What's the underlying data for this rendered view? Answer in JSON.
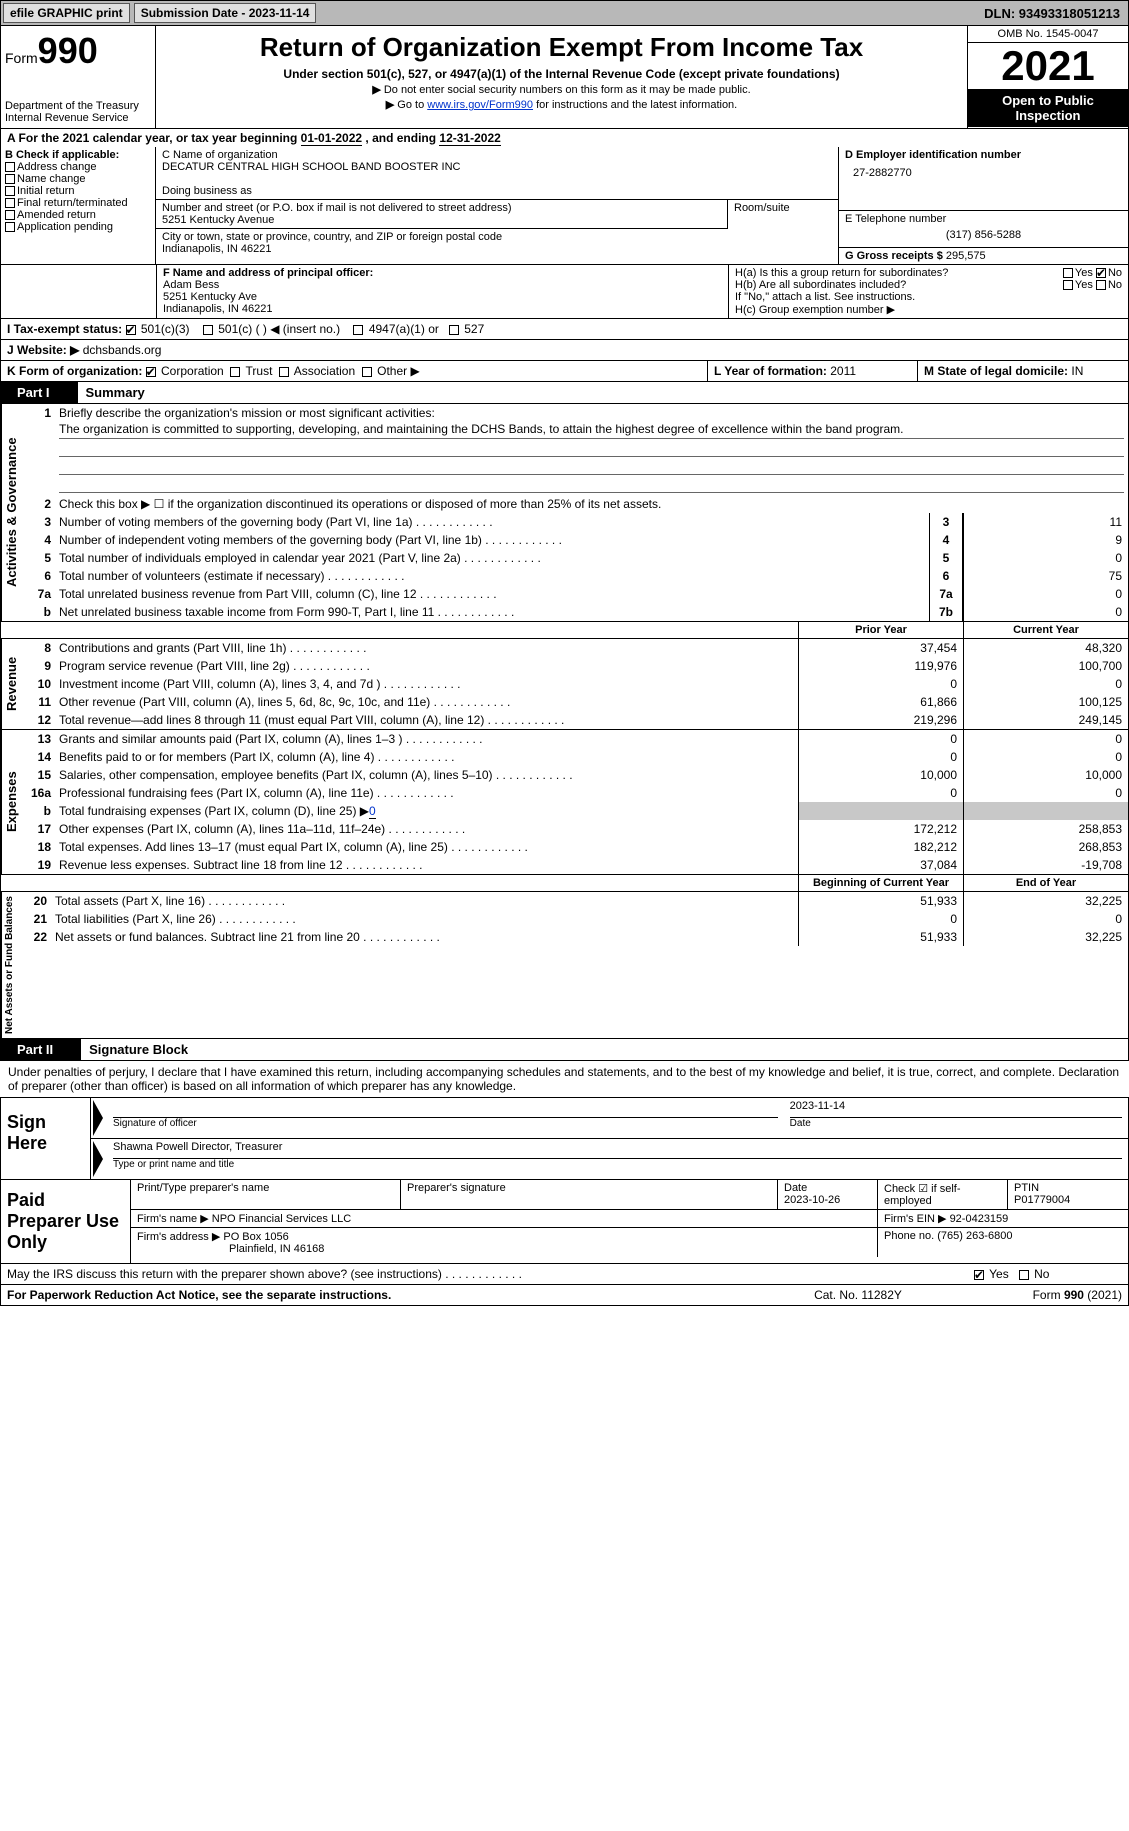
{
  "topbar": {
    "efile": "efile GRAPHIC print",
    "submission_label": "Submission Date - 2023-11-14",
    "dln_label": "DLN: 93493318051213"
  },
  "header": {
    "form_word": "Form",
    "form_number": "990",
    "title": "Return of Organization Exempt From Income Tax",
    "subtitle": "Under section 501(c), 527, or 4947(a)(1) of the Internal Revenue Code (except private foundations)",
    "note1": "Do not enter social security numbers on this form as it may be made public.",
    "note2_pre": "Go to ",
    "note2_link": "www.irs.gov/Form990",
    "note2_post": " for instructions and the latest information.",
    "dept1": "Department of the Treasury",
    "dept2": "Internal Revenue Service",
    "omb": "OMB No. 1545-0047",
    "year": "2021",
    "open": "Open to Public Inspection"
  },
  "period": {
    "label_a": "A For the 2021 calendar year, or tax year beginning ",
    "begin": "01-01-2022",
    "mid": "   , and ending ",
    "end": "12-31-2022"
  },
  "boxB": {
    "title": "B Check if applicable:",
    "items": [
      "Address change",
      "Name change",
      "Initial return",
      "Final return/terminated",
      "Amended return",
      "Application pending"
    ]
  },
  "boxC": {
    "name_label": "C Name of organization",
    "name": "DECATUR CENTRAL HIGH SCHOOL BAND BOOSTER INC",
    "dba_label": "Doing business as",
    "dba": "",
    "street_label": "Number and street (or P.O. box if mail is not delivered to street address)",
    "street": "5251 Kentucky Avenue",
    "room_label": "Room/suite",
    "room": "",
    "city_label": "City or town, state or province, country, and ZIP or foreign postal code",
    "city": "Indianapolis, IN  46221"
  },
  "boxD": {
    "ein_label": "D Employer identification number",
    "ein": "27-2882770",
    "phone_label": "E Telephone number",
    "phone": "(317) 856-5288",
    "gross_label": "G Gross receipts $ ",
    "gross": "295,575"
  },
  "boxF": {
    "label": "F Name and address of principal officer:",
    "name": "Adam Bess",
    "addr1": "5251 Kentucky Ave",
    "addr2": "Indianapolis, IN  46221"
  },
  "boxH": {
    "ha_label": "H(a)  Is this a group return for subordinates?",
    "hb_label": "H(b)  Are all subordinates included?",
    "hb_note": "If \"No,\" attach a list. See instructions.",
    "hc_label": "H(c)  Group exemption number ▶",
    "yes": "Yes",
    "no": "No"
  },
  "boxI": {
    "label": "I  Tax-exempt status:",
    "opt1": "501(c)(3)",
    "opt2": "501(c) (  ) ◀ (insert no.)",
    "opt3": "4947(a)(1) or",
    "opt4": "527"
  },
  "boxJ": {
    "label": "J  Website: ▶",
    "value": "dchsbands.org"
  },
  "boxK": {
    "label": "K Form of organization:",
    "opts": [
      "Corporation",
      "Trust",
      "Association",
      "Other ▶"
    ]
  },
  "boxL": {
    "label": "L Year of formation: ",
    "value": "2011"
  },
  "boxM": {
    "label": "M State of legal domicile: ",
    "value": "IN"
  },
  "part1": {
    "label": "Part I",
    "title": "Summary",
    "q1_label": "Briefly describe the organization's mission or most significant activities:",
    "q1_text": "The organization is committed to supporting, developing, and maintaining the DCHS Bands, to attain the highest degree of excellence within the band program.",
    "q2": "Check this box ▶ ☐ if the organization discontinued its operations or disposed of more than 25% of its net assets.",
    "rows_gov": [
      {
        "n": "3",
        "t": "Number of voting members of the governing body (Part VI, line 1a)",
        "box": "3",
        "v": "11"
      },
      {
        "n": "4",
        "t": "Number of independent voting members of the governing body (Part VI, line 1b)",
        "box": "4",
        "v": "9"
      },
      {
        "n": "5",
        "t": "Total number of individuals employed in calendar year 2021 (Part V, line 2a)",
        "box": "5",
        "v": "0"
      },
      {
        "n": "6",
        "t": "Total number of volunteers (estimate if necessary)",
        "box": "6",
        "v": "75"
      },
      {
        "n": "7a",
        "t": "Total unrelated business revenue from Part VIII, column (C), line 12",
        "box": "7a",
        "v": "0"
      },
      {
        "n": "b",
        "t": "Net unrelated business taxable income from Form 990-T, Part I, line 11",
        "box": "7b",
        "v": "0"
      }
    ],
    "col_headers": {
      "prior": "Prior Year",
      "current": "Current Year",
      "begin": "Beginning of Current Year",
      "end": "End of Year"
    },
    "rev": [
      {
        "n": "8",
        "t": "Contributions and grants (Part VIII, line 1h)",
        "p": "37,454",
        "c": "48,320"
      },
      {
        "n": "9",
        "t": "Program service revenue (Part VIII, line 2g)",
        "p": "119,976",
        "c": "100,700"
      },
      {
        "n": "10",
        "t": "Investment income (Part VIII, column (A), lines 3, 4, and 7d )",
        "p": "0",
        "c": "0"
      },
      {
        "n": "11",
        "t": "Other revenue (Part VIII, column (A), lines 5, 6d, 8c, 9c, 10c, and 11e)",
        "p": "61,866",
        "c": "100,125"
      },
      {
        "n": "12",
        "t": "Total revenue—add lines 8 through 11 (must equal Part VIII, column (A), line 12)",
        "p": "219,296",
        "c": "249,145"
      }
    ],
    "exp": [
      {
        "n": "13",
        "t": "Grants and similar amounts paid (Part IX, column (A), lines 1–3 )",
        "p": "0",
        "c": "0"
      },
      {
        "n": "14",
        "t": "Benefits paid to or for members (Part IX, column (A), line 4)",
        "p": "0",
        "c": "0"
      },
      {
        "n": "15",
        "t": "Salaries, other compensation, employee benefits (Part IX, column (A), lines 5–10)",
        "p": "10,000",
        "c": "10,000"
      },
      {
        "n": "16a",
        "t": "Professional fundraising fees (Part IX, column (A), line 11e)",
        "p": "0",
        "c": "0"
      },
      {
        "n": "b",
        "t": "Total fundraising expenses (Part IX, column (D), line 25) ▶",
        "inline": "0",
        "shaded": true
      },
      {
        "n": "17",
        "t": "Other expenses (Part IX, column (A), lines 11a–11d, 11f–24e)",
        "p": "172,212",
        "c": "258,853"
      },
      {
        "n": "18",
        "t": "Total expenses. Add lines 13–17 (must equal Part IX, column (A), line 25)",
        "p": "182,212",
        "c": "268,853"
      },
      {
        "n": "19",
        "t": "Revenue less expenses. Subtract line 18 from line 12",
        "p": "37,084",
        "c": "-19,708"
      }
    ],
    "net": [
      {
        "n": "20",
        "t": "Total assets (Part X, line 16)",
        "p": "51,933",
        "c": "32,225"
      },
      {
        "n": "21",
        "t": "Total liabilities (Part X, line 26)",
        "p": "0",
        "c": "0"
      },
      {
        "n": "22",
        "t": "Net assets or fund balances. Subtract line 21 from line 20",
        "p": "51,933",
        "c": "32,225"
      }
    ],
    "vlabels": {
      "gov": "Activities & Governance",
      "rev": "Revenue",
      "exp": "Expenses",
      "net": "Net Assets or Fund Balances"
    }
  },
  "part2": {
    "label": "Part II",
    "title": "Signature Block",
    "penalty": "Under penalties of perjury, I declare that I have examined this return, including accompanying schedules and statements, and to the best of my knowledge and belief, it is true, correct, and complete. Declaration of preparer (other than officer) is based on all information of which preparer has any knowledge.",
    "sign_here": "Sign Here",
    "sig_officer": "Signature of officer",
    "sig_date": "2023-11-14",
    "date_label": "Date",
    "officer_name": "Shawna Powell  Director, Treasurer",
    "type_name": "Type or print name and title",
    "paid_label": "Paid Preparer Use Only",
    "prep_name_label": "Print/Type preparer's name",
    "prep_sig_label": "Preparer's signature",
    "prep_date_label": "Date",
    "prep_date": "2023-10-26",
    "self_emp": "Check ☑ if self-employed",
    "ptin_label": "PTIN",
    "ptin": "P01779004",
    "firm_name_label": "Firm's name    ▶",
    "firm_name": "NPO Financial Services LLC",
    "firm_ein_label": "Firm's EIN ▶",
    "firm_ein": "92-0423159",
    "firm_addr_label": "Firm's address ▶",
    "firm_addr1": "PO Box 1056",
    "firm_addr2": "Plainfield, IN  46168",
    "firm_phone_label": "Phone no. ",
    "firm_phone": "(765) 263-6800",
    "discuss": "May the IRS discuss this return with the preparer shown above? (see instructions)",
    "yes": "Yes",
    "no": "No"
  },
  "footer": {
    "pra": "For Paperwork Reduction Act Notice, see the separate instructions.",
    "cat": "Cat. No. 11282Y",
    "form": "Form 990 (2021)"
  }
}
